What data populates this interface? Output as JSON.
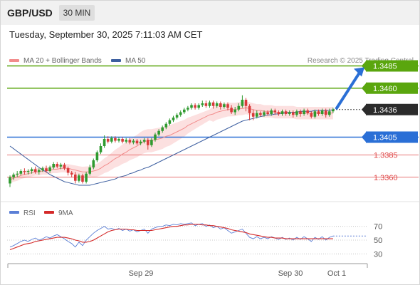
{
  "header": {
    "symbol": "GBP/USD",
    "timeframe": "30 MIN"
  },
  "datetime": "Tuesday, September 30, 2025 7:11:03 AM CET",
  "legend": [
    {
      "label": "MA 20 + Bollinger Bands",
      "color": "#f28c8c"
    },
    {
      "label": "MA 50",
      "color": "#3d5fa0"
    }
  ],
  "credit": "Research © 2025 Trading Central",
  "colors": {
    "target": "#5aa60e",
    "pivot": "#2a6fd6",
    "support": "#e04848",
    "bull": "#2f9a2f",
    "bear": "#d83a3a",
    "band": "#fbd3d3",
    "ma20": "#f28c8c",
    "ma50": "#3d5fa0",
    "rsi": "#5b7fd6",
    "rsi_ma": "#d42a2a"
  },
  "chart_data": [
    {
      "type": "candlestick",
      "y_range": [
        1.3335,
        1.3495
      ],
      "current_price": "1.3436",
      "levels": [
        {
          "price": 1.3485,
          "label": "1.3485",
          "kind": "target"
        },
        {
          "price": 1.346,
          "label": "1.3460",
          "kind": "target"
        },
        {
          "price": 1.3405,
          "label": "1.3405",
          "kind": "pivot"
        },
        {
          "price": 1.3385,
          "label": "1.3385",
          "kind": "support"
        },
        {
          "price": 1.336,
          "label": "1.3360",
          "kind": "support"
        }
      ],
      "projection": {
        "from_price": 1.3438,
        "to_price": 1.3485,
        "direction": "up"
      },
      "x_ticks": [
        "Sep 29",
        "Sep 30",
        "Oct 1"
      ],
      "candles": [
        [
          1.3353,
          1.336,
          1.3349,
          1.3362
        ],
        [
          1.336,
          1.3363,
          1.3357,
          1.3365
        ],
        [
          1.3363,
          1.3364,
          1.336,
          1.3367
        ],
        [
          1.3364,
          1.3367,
          1.3362,
          1.3369
        ],
        [
          1.3367,
          1.3366,
          1.3363,
          1.337
        ],
        [
          1.3366,
          1.3367,
          1.3363,
          1.3369
        ],
        [
          1.3367,
          1.3369,
          1.3364,
          1.3371
        ],
        [
          1.3369,
          1.3366,
          1.3364,
          1.3372
        ],
        [
          1.3366,
          1.3368,
          1.3363,
          1.337
        ],
        [
          1.3368,
          1.337,
          1.3366,
          1.3372
        ],
        [
          1.337,
          1.3367,
          1.3365,
          1.3373
        ],
        [
          1.3367,
          1.3371,
          1.3365,
          1.3373
        ],
        [
          1.3371,
          1.3375,
          1.3369,
          1.3377
        ],
        [
          1.3375,
          1.3372,
          1.337,
          1.3377
        ],
        [
          1.3372,
          1.3374,
          1.3369,
          1.3376
        ],
        [
          1.3374,
          1.337,
          1.3368,
          1.3376
        ],
        [
          1.337,
          1.3365,
          1.3362,
          1.3372
        ],
        [
          1.3365,
          1.3363,
          1.336,
          1.3367
        ],
        [
          1.3363,
          1.3356,
          1.3353,
          1.3366
        ],
        [
          1.3356,
          1.3362,
          1.3354,
          1.3364
        ],
        [
          1.3362,
          1.3355,
          1.3353,
          1.3364
        ],
        [
          1.3355,
          1.3364,
          1.3353,
          1.3366
        ],
        [
          1.3364,
          1.3371,
          1.3362,
          1.3374
        ],
        [
          1.3371,
          1.3379,
          1.3369,
          1.3381
        ],
        [
          1.3379,
          1.3388,
          1.3377,
          1.339
        ],
        [
          1.3388,
          1.3395,
          1.3386,
          1.3398
        ],
        [
          1.3395,
          1.3403,
          1.3393,
          1.3407
        ],
        [
          1.3403,
          1.34,
          1.3398,
          1.3406
        ],
        [
          1.34,
          1.3404,
          1.3398,
          1.3406
        ],
        [
          1.3404,
          1.3401,
          1.3399,
          1.3406
        ],
        [
          1.3401,
          1.3403,
          1.3399,
          1.3405
        ],
        [
          1.3403,
          1.34,
          1.3398,
          1.3405
        ],
        [
          1.34,
          1.3402,
          1.3398,
          1.3404
        ],
        [
          1.3402,
          1.3399,
          1.3397,
          1.3404
        ],
        [
          1.3399,
          1.3401,
          1.3397,
          1.3403
        ],
        [
          1.3401,
          1.3398,
          1.3396,
          1.3403
        ],
        [
          1.3398,
          1.34,
          1.3396,
          1.3402
        ],
        [
          1.34,
          1.3402,
          1.3398,
          1.3404
        ],
        [
          1.3402,
          1.3396,
          1.3391,
          1.3404
        ],
        [
          1.3396,
          1.3402,
          1.3394,
          1.3404
        ],
        [
          1.3402,
          1.3408,
          1.34,
          1.341
        ],
        [
          1.3408,
          1.3412,
          1.3406,
          1.3414
        ],
        [
          1.3412,
          1.3416,
          1.341,
          1.3418
        ],
        [
          1.3416,
          1.342,
          1.3414,
          1.3422
        ],
        [
          1.342,
          1.3424,
          1.3418,
          1.3426
        ],
        [
          1.3424,
          1.3427,
          1.3422,
          1.3429
        ],
        [
          1.3427,
          1.343,
          1.3425,
          1.3432
        ],
        [
          1.343,
          1.3433,
          1.3428,
          1.3435
        ],
        [
          1.3433,
          1.3436,
          1.3431,
          1.3438
        ],
        [
          1.3436,
          1.3438,
          1.3434,
          1.344
        ],
        [
          1.3438,
          1.3441,
          1.3436,
          1.3443
        ],
        [
          1.3441,
          1.3438,
          1.3436,
          1.3443
        ],
        [
          1.3438,
          1.3441,
          1.3436,
          1.3443
        ],
        [
          1.3441,
          1.3443,
          1.3439,
          1.3446
        ],
        [
          1.3443,
          1.344,
          1.3438,
          1.3446
        ],
        [
          1.344,
          1.3444,
          1.3438,
          1.3446
        ],
        [
          1.3444,
          1.344,
          1.3437,
          1.3446
        ],
        [
          1.344,
          1.3443,
          1.3438,
          1.3445
        ],
        [
          1.3443,
          1.3439,
          1.3436,
          1.3445
        ],
        [
          1.3439,
          1.3442,
          1.3437,
          1.3444
        ],
        [
          1.3442,
          1.3438,
          1.3435,
          1.3444
        ],
        [
          1.3438,
          1.3433,
          1.3431,
          1.3441
        ],
        [
          1.3433,
          1.3436,
          1.343,
          1.3439
        ],
        [
          1.3436,
          1.344,
          1.3434,
          1.3443
        ],
        [
          1.344,
          1.3447,
          1.3438,
          1.3452
        ],
        [
          1.3447,
          1.344,
          1.3434,
          1.3449
        ],
        [
          1.344,
          1.3432,
          1.3424,
          1.3442
        ],
        [
          1.3432,
          1.3428,
          1.3424,
          1.3436
        ],
        [
          1.3428,
          1.3432,
          1.3426,
          1.3435
        ],
        [
          1.3432,
          1.343,
          1.3428,
          1.3434
        ],
        [
          1.343,
          1.3433,
          1.3428,
          1.3435
        ],
        [
          1.3433,
          1.3431,
          1.3429,
          1.3435
        ],
        [
          1.3431,
          1.3435,
          1.3429,
          1.3437
        ],
        [
          1.3435,
          1.3433,
          1.343,
          1.3437
        ],
        [
          1.3433,
          1.3431,
          1.3429,
          1.3435
        ],
        [
          1.3431,
          1.3434,
          1.3429,
          1.3436
        ],
        [
          1.3434,
          1.3431,
          1.3429,
          1.3436
        ],
        [
          1.3431,
          1.3433,
          1.3429,
          1.3435
        ],
        [
          1.3433,
          1.343,
          1.3427,
          1.3435
        ],
        [
          1.343,
          1.3434,
          1.3428,
          1.3436
        ],
        [
          1.3434,
          1.3431,
          1.3428,
          1.3436
        ],
        [
          1.3431,
          1.3435,
          1.3429,
          1.3437
        ],
        [
          1.3435,
          1.3432,
          1.343,
          1.3437
        ],
        [
          1.3432,
          1.3428,
          1.3426,
          1.3434
        ],
        [
          1.3428,
          1.3434,
          1.3426,
          1.3436
        ],
        [
          1.3434,
          1.3431,
          1.3429,
          1.3436
        ],
        [
          1.3431,
          1.3435,
          1.3429,
          1.3437
        ],
        [
          1.3435,
          1.343,
          1.3427,
          1.3437
        ],
        [
          1.343,
          1.3434,
          1.3428,
          1.3437
        ],
        [
          1.3434,
          1.3436,
          1.3432,
          1.3438
        ]
      ],
      "series": [
        {
          "name": "MA 20 + Bollinger Bands",
          "values": [
            1.3357,
            1.3359,
            1.336,
            1.3362,
            1.3363,
            1.3364,
            1.3365,
            1.3366,
            1.3366,
            1.3367,
            1.3367,
            1.3368,
            1.3369,
            1.3369,
            1.337,
            1.337,
            1.337,
            1.3369,
            1.3368,
            1.3367,
            1.3366,
            1.3366,
            1.3366,
            1.3367,
            1.3368,
            1.337,
            1.3373,
            1.3375,
            1.3378,
            1.3381,
            1.3383,
            1.3386,
            1.3388,
            1.3391,
            1.3393,
            1.3395,
            1.3398,
            1.34,
            1.3401,
            1.3401,
            1.3402,
            1.3403,
            1.3404,
            1.3406,
            1.3407,
            1.3409,
            1.3411,
            1.3413,
            1.3415,
            1.3418,
            1.342,
            1.3422,
            1.3424,
            1.3426,
            1.3428,
            1.343,
            1.3431,
            1.3433,
            1.3434,
            1.3435,
            1.3436,
            1.3436,
            1.3436,
            1.3437,
            1.3437,
            1.3438,
            1.3437,
            1.3436,
            1.3435,
            1.3435,
            1.3434,
            1.3434,
            1.3434,
            1.3433,
            1.3433,
            1.3433,
            1.3433,
            1.3433,
            1.3433,
            1.3432,
            1.3432,
            1.3432,
            1.3432,
            1.3432,
            1.3432,
            1.3432,
            1.3432,
            1.3432,
            1.3432,
            1.3432
          ]
        },
        {
          "name": "MA 50",
          "values": [
            1.3395,
            1.3392,
            1.3389,
            1.3386,
            1.3383,
            1.338,
            1.3377,
            1.3374,
            1.3371,
            1.3368,
            1.3366,
            1.3363,
            1.3361,
            1.3359,
            1.3357,
            1.3355,
            1.3354,
            1.3353,
            1.3352,
            1.3351,
            1.3351,
            1.3351,
            1.3351,
            1.3352,
            1.3353,
            1.3354,
            1.3355,
            1.3356,
            1.3357,
            1.3358,
            1.336,
            1.3361,
            1.3362,
            1.3364,
            1.3365,
            1.3367,
            1.3368,
            1.337,
            1.3371,
            1.3373,
            1.3375,
            1.3377,
            1.3379,
            1.3381,
            1.3383,
            1.3385,
            1.3387,
            1.3389,
            1.3391,
            1.3393,
            1.3395,
            1.3397,
            1.3399,
            1.3401,
            1.3403,
            1.3405,
            1.3407,
            1.3409,
            1.3411,
            1.3413,
            1.3415,
            1.3417,
            1.3419,
            1.3421,
            1.3423,
            1.3424,
            1.3425,
            1.3426,
            1.3427,
            1.3428,
            1.3429,
            1.343,
            1.343,
            1.3431,
            1.3431,
            1.3432,
            1.3432,
            1.3433,
            1.3433,
            1.3433,
            1.3434,
            1.3434,
            1.3434,
            1.3434,
            1.3435,
            1.3435,
            1.3435,
            1.3435,
            1.3435,
            1.3436
          ]
        }
      ]
    },
    {
      "type": "line",
      "y_range": [
        20,
        80
      ],
      "y_ticks": [
        70,
        50,
        30
      ],
      "legend": [
        "RSI",
        "9MA"
      ],
      "series": [
        {
          "name": "RSI",
          "values": [
            40,
            42,
            45,
            48,
            50,
            48,
            51,
            53,
            50,
            52,
            55,
            53,
            56,
            58,
            55,
            52,
            48,
            45,
            40,
            47,
            42,
            50,
            55,
            60,
            64,
            67,
            70,
            66,
            67,
            65,
            67,
            64,
            66,
            63,
            65,
            62,
            64,
            66,
            60,
            66,
            68,
            70,
            70,
            72,
            71,
            73,
            72,
            74,
            73,
            74,
            75,
            71,
            73,
            74,
            70,
            72,
            68,
            70,
            66,
            68,
            64,
            60,
            62,
            64,
            66,
            60,
            54,
            52,
            55,
            52,
            54,
            52,
            55,
            53,
            51,
            54,
            51,
            53,
            50,
            54,
            51,
            55,
            52,
            48,
            54,
            51,
            55,
            50,
            54,
            56
          ]
        },
        {
          "name": "9MA",
          "values": [
            36,
            38,
            40,
            42,
            44,
            45,
            46,
            48,
            49,
            50,
            51,
            52,
            53,
            54,
            54,
            54,
            53,
            52,
            50,
            49,
            47,
            47,
            48,
            50,
            53,
            56,
            59,
            62,
            64,
            65,
            66,
            66,
            66,
            65,
            65,
            64,
            64,
            64,
            64,
            64,
            65,
            66,
            67,
            68,
            69,
            70,
            70,
            71,
            72,
            72,
            73,
            73,
            73,
            72,
            72,
            71,
            71,
            70,
            69,
            68,
            67,
            65,
            64,
            63,
            62,
            61,
            59,
            58,
            57,
            56,
            55,
            54,
            54,
            53,
            53,
            53,
            52,
            52,
            52,
            52,
            52,
            52,
            52,
            52,
            52,
            52,
            52,
            52,
            52,
            52
          ]
        }
      ]
    }
  ]
}
